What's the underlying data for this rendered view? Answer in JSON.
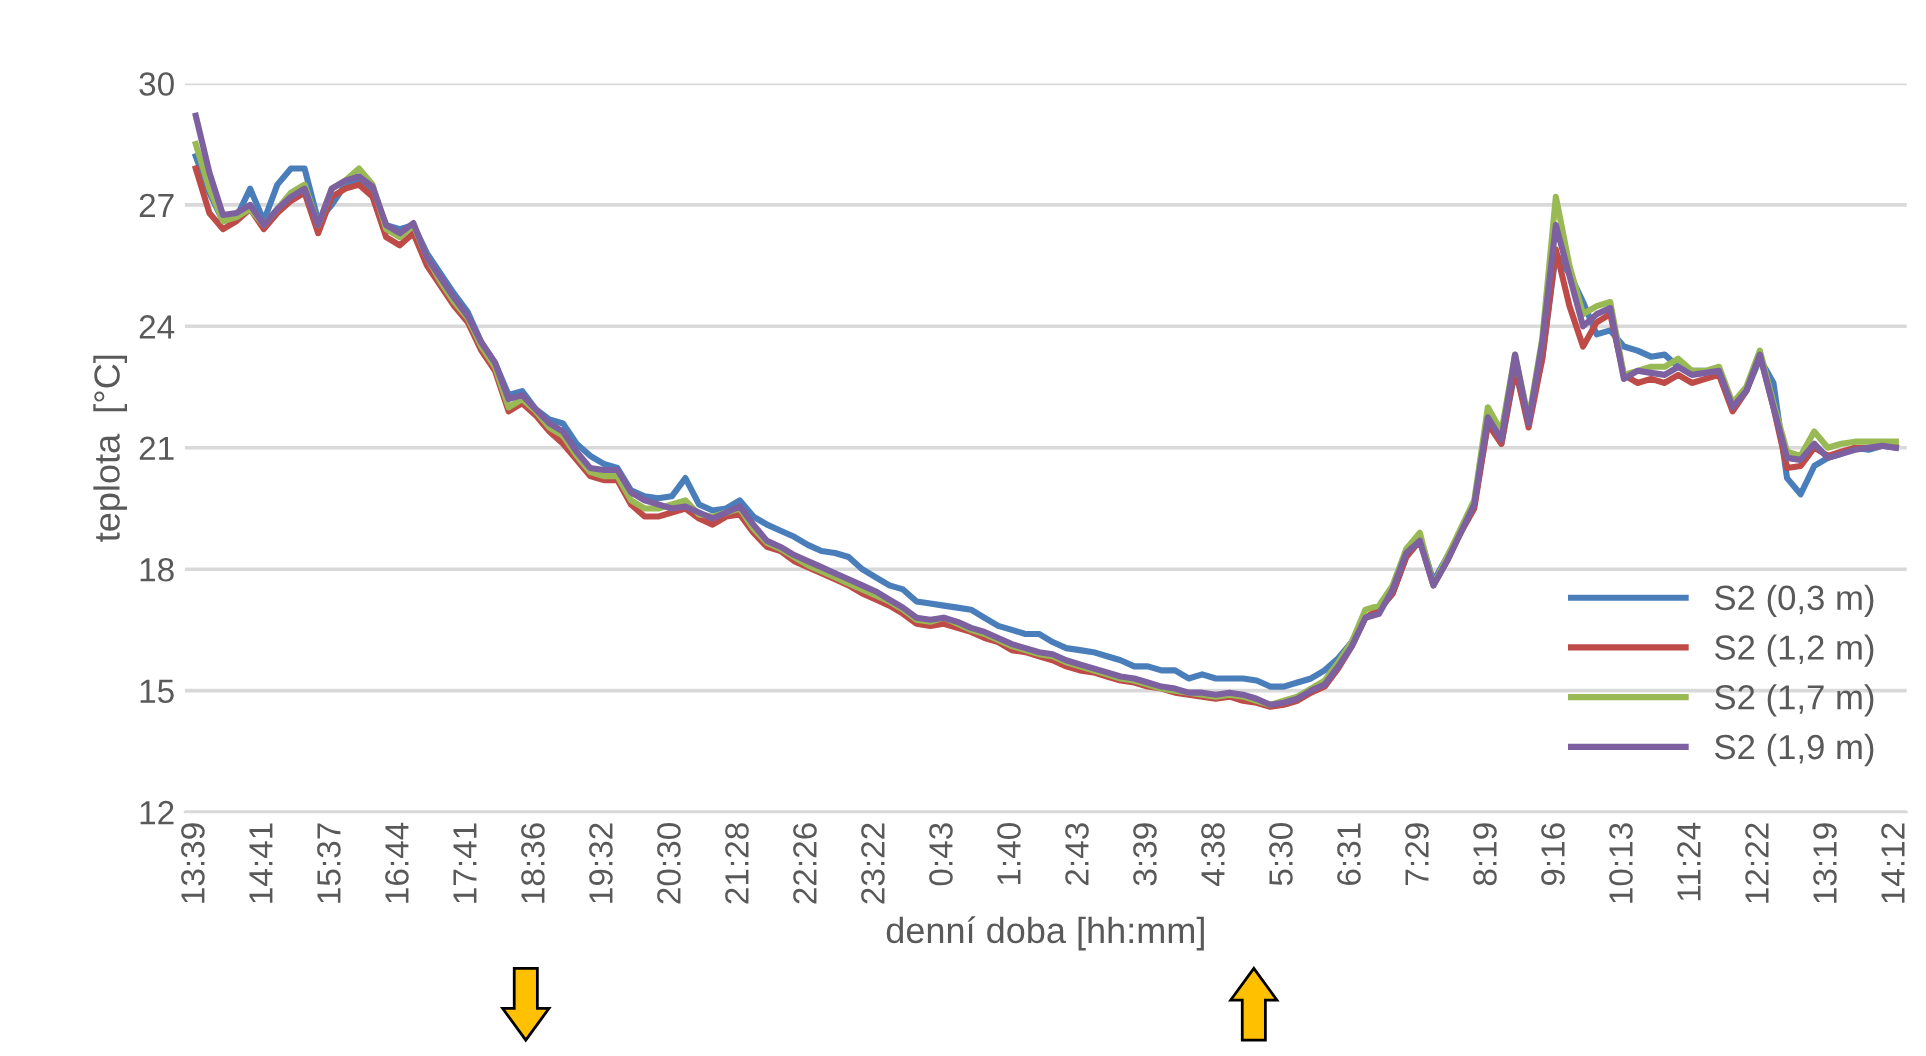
{
  "chart_data": {
    "type": "line",
    "xlabel": "denní doba [hh:mm]",
    "ylabel": "teplota  [°C]",
    "categories": [
      "13:39",
      null,
      null,
      null,
      null,
      "14:41",
      null,
      null,
      null,
      null,
      "15:37",
      null,
      null,
      null,
      null,
      "16:44",
      null,
      null,
      null,
      null,
      "17:41",
      null,
      null,
      null,
      null,
      "18:36",
      null,
      null,
      null,
      null,
      "19:32",
      null,
      null,
      null,
      null,
      "20:30",
      null,
      null,
      null,
      null,
      "21:28",
      null,
      null,
      null,
      null,
      "22:26",
      null,
      null,
      null,
      null,
      "23:22",
      null,
      null,
      null,
      null,
      "0:43",
      null,
      null,
      null,
      null,
      "1:40",
      null,
      null,
      null,
      null,
      "2:43",
      null,
      null,
      null,
      null,
      "3:39",
      null,
      null,
      null,
      null,
      "4:38",
      null,
      null,
      null,
      null,
      "5:30",
      null,
      null,
      null,
      null,
      "6:31",
      null,
      null,
      null,
      null,
      "7:29",
      null,
      null,
      null,
      null,
      "8:19",
      null,
      null,
      null,
      null,
      "9:16",
      null,
      null,
      null,
      null,
      "10:13",
      null,
      null,
      null,
      null,
      "11:24",
      null,
      null,
      null,
      null,
      "12:22",
      null,
      null,
      null,
      null,
      "13:19",
      null,
      null,
      null,
      null,
      "14:12"
    ],
    "ylim": [
      12,
      30
    ],
    "yticks": [
      12,
      15,
      18,
      21,
      24,
      27,
      30
    ],
    "grid": "y",
    "legend": "bottom right",
    "marker": "none",
    "line_style": "solid",
    "series": [
      {
        "name": "S2 (0,3 m)",
        "color": "#4a7ebb",
        "values": [
          28.2,
          27.3,
          26.6,
          26.7,
          27.4,
          26.6,
          27.5,
          27.9,
          27.9,
          26.6,
          27.0,
          27.5,
          27.6,
          27.3,
          26.5,
          26.4,
          26.5,
          25.8,
          25.3,
          24.8,
          24.35,
          23.6,
          23.1,
          22.3,
          22.4,
          21.95,
          21.7,
          21.6,
          21.1,
          20.8,
          20.6,
          20.5,
          19.95,
          19.8,
          19.75,
          19.8,
          20.25,
          19.6,
          19.45,
          19.5,
          19.7,
          19.3,
          19.1,
          18.95,
          18.8,
          18.6,
          18.45,
          18.4,
          18.3,
          18.0,
          17.8,
          17.6,
          17.5,
          17.2,
          17.15,
          17.1,
          17.05,
          17.0,
          16.8,
          16.6,
          16.5,
          16.4,
          16.4,
          16.2,
          16.05,
          16.0,
          15.95,
          15.85,
          15.75,
          15.6,
          15.6,
          15.5,
          15.5,
          15.3,
          15.4,
          15.3,
          15.3,
          15.3,
          15.25,
          15.1,
          15.1,
          15.2,
          15.3,
          15.5,
          15.8,
          16.2,
          16.8,
          17.0,
          17.4,
          18.3,
          18.8,
          17.7,
          18.3,
          18.9,
          19.6,
          21.6,
          21.1,
          22.9,
          21.7,
          23.2,
          25.8,
          25.3,
          24.6,
          23.8,
          23.9,
          23.5,
          23.4,
          23.25,
          23.3,
          23.0,
          22.9,
          22.9,
          22.8,
          22.1,
          22.4,
          23.2,
          22.6,
          20.25,
          19.85,
          20.55,
          20.75,
          20.85,
          21.0,
          20.95,
          21.05,
          21.0
        ]
      },
      {
        "name": "S2 (1,2 m)",
        "color": "#be4b48",
        "values": [
          27.9,
          26.8,
          26.4,
          26.6,
          26.9,
          26.4,
          26.8,
          27.1,
          27.3,
          26.3,
          27.2,
          27.4,
          27.5,
          27.2,
          26.2,
          26.0,
          26.3,
          25.5,
          25.0,
          24.5,
          24.1,
          23.4,
          22.9,
          21.9,
          22.1,
          21.8,
          21.4,
          21.1,
          20.7,
          20.3,
          20.2,
          20.2,
          19.6,
          19.3,
          19.3,
          19.4,
          19.5,
          19.25,
          19.1,
          19.3,
          19.35,
          18.9,
          18.55,
          18.45,
          18.2,
          18.05,
          17.9,
          17.75,
          17.6,
          17.4,
          17.25,
          17.1,
          16.9,
          16.65,
          16.6,
          16.65,
          16.55,
          16.45,
          16.3,
          16.2,
          16.0,
          15.95,
          15.85,
          15.75,
          15.6,
          15.5,
          15.45,
          15.35,
          15.25,
          15.2,
          15.1,
          15.05,
          14.95,
          14.9,
          14.85,
          14.8,
          14.85,
          14.75,
          14.7,
          14.6,
          14.65,
          14.75,
          14.95,
          15.1,
          15.55,
          16.1,
          16.8,
          17.0,
          17.4,
          18.3,
          18.7,
          17.6,
          18.2,
          18.9,
          19.5,
          21.6,
          21.1,
          23.0,
          21.5,
          23.2,
          25.9,
          24.5,
          23.5,
          24.1,
          24.3,
          22.8,
          22.6,
          22.7,
          22.6,
          22.8,
          22.6,
          22.7,
          22.8,
          21.9,
          22.4,
          23.3,
          22.0,
          20.5,
          20.55,
          21.0,
          20.8,
          20.9,
          21.0,
          21.0,
          21.05,
          21.05
        ]
      },
      {
        "name": "S2 (1,7 m)",
        "color": "#98b954",
        "values": [
          28.5,
          27.4,
          26.6,
          26.7,
          26.9,
          26.5,
          26.9,
          27.3,
          27.5,
          26.5,
          27.4,
          27.6,
          27.9,
          27.5,
          26.4,
          26.2,
          26.5,
          25.7,
          25.1,
          24.6,
          24.2,
          23.5,
          23.0,
          22.0,
          22.2,
          21.9,
          21.5,
          21.3,
          20.8,
          20.4,
          20.3,
          20.3,
          19.7,
          19.5,
          19.5,
          19.6,
          19.7,
          19.35,
          19.3,
          19.4,
          19.5,
          19.0,
          18.65,
          18.5,
          18.3,
          18.1,
          17.95,
          17.8,
          17.65,
          17.5,
          17.35,
          17.2,
          17.0,
          16.75,
          16.7,
          16.8,
          16.65,
          16.5,
          16.4,
          16.25,
          16.1,
          16.0,
          15.9,
          15.85,
          15.7,
          15.6,
          15.5,
          15.4,
          15.3,
          15.25,
          15.15,
          15.05,
          15.0,
          14.95,
          14.9,
          14.85,
          14.9,
          14.85,
          14.75,
          14.65,
          14.75,
          14.85,
          15.05,
          15.25,
          15.7,
          16.2,
          17.0,
          17.1,
          17.6,
          18.5,
          18.9,
          17.6,
          18.3,
          19.0,
          19.7,
          22.0,
          21.4,
          23.3,
          21.7,
          23.7,
          27.2,
          25.5,
          24.3,
          24.5,
          24.6,
          22.8,
          22.9,
          23.0,
          23.0,
          23.2,
          22.9,
          22.9,
          23.0,
          22.1,
          22.5,
          23.4,
          22.1,
          20.9,
          20.8,
          21.4,
          21.0,
          21.1,
          21.15,
          21.15,
          21.15,
          21.15
        ]
      },
      {
        "name": "S2 (1,9 m)",
        "color": "#7d60a0",
        "values": [
          29.2,
          27.8,
          26.75,
          26.8,
          27.0,
          26.5,
          26.9,
          27.2,
          27.4,
          26.5,
          27.4,
          27.6,
          27.7,
          27.45,
          26.5,
          26.3,
          26.55,
          25.7,
          25.2,
          24.7,
          24.25,
          23.6,
          23.1,
          22.2,
          22.3,
          21.95,
          21.6,
          21.4,
          20.9,
          20.5,
          20.45,
          20.45,
          19.9,
          19.7,
          19.6,
          19.5,
          19.55,
          19.4,
          19.25,
          19.4,
          19.55,
          19.1,
          18.7,
          18.55,
          18.35,
          18.2,
          18.05,
          17.9,
          17.75,
          17.6,
          17.45,
          17.25,
          17.05,
          16.8,
          16.75,
          16.8,
          16.7,
          16.55,
          16.45,
          16.3,
          16.15,
          16.05,
          15.95,
          15.9,
          15.75,
          15.65,
          15.55,
          15.45,
          15.35,
          15.3,
          15.2,
          15.1,
          15.05,
          14.95,
          14.95,
          14.9,
          14.95,
          14.9,
          14.8,
          14.65,
          14.7,
          14.8,
          15.0,
          15.15,
          15.6,
          16.1,
          16.8,
          16.9,
          17.5,
          18.4,
          18.7,
          17.6,
          18.2,
          18.9,
          19.6,
          21.75,
          21.2,
          23.3,
          21.6,
          23.6,
          26.5,
          25.25,
          24.0,
          24.3,
          24.45,
          22.7,
          22.9,
          22.85,
          22.8,
          23.0,
          22.8,
          22.85,
          22.9,
          22.0,
          22.4,
          23.3,
          22.0,
          20.75,
          20.7,
          21.1,
          20.75,
          20.85,
          20.95,
          21.0,
          21.05,
          21.0
        ]
      }
    ]
  }
}
